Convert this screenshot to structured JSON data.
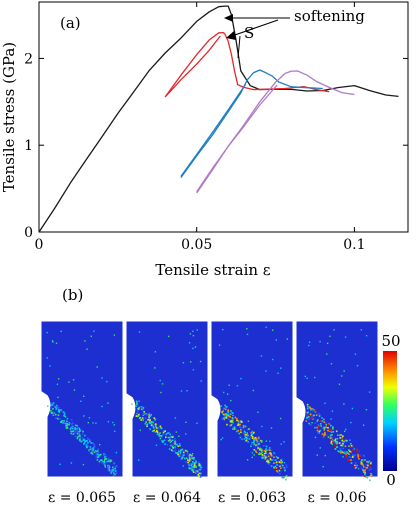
{
  "panel_a_label": "(a)",
  "panel_b_label": "(b)",
  "annotation_softening": "softening",
  "annotation_s": "S",
  "colorbar": {
    "max_label": "50",
    "min_label": "0"
  },
  "snapshots": [
    {
      "label": "ε = 0.065",
      "shift": 0
    },
    {
      "label": "ε = 0.064",
      "shift": 1
    },
    {
      "label": "ε = 0.063",
      "shift": 2
    },
    {
      "label": "ε = 0.06",
      "shift": 3
    }
  ],
  "colors": {
    "black_curve": "#1a1a1a",
    "red_curve": "#e8262b",
    "blue_curve": "#1f7fc4",
    "violet_curve": "#b07ac8",
    "field_background": "#1d2fd0"
  },
  "chart_data": {
    "type": "line",
    "xlabel": "Tensile strain ε",
    "ylabel": "Tensile stress (GPa)",
    "xlim": [
      0,
      0.117
    ],
    "ylim": [
      0,
      2.65
    ],
    "xticks": [
      0,
      0.05,
      0.1
    ],
    "xtick_labels": [
      "0",
      "0.05",
      "0.1"
    ],
    "yticks": [
      0,
      1,
      2
    ],
    "ytick_labels": [
      "0",
      "1",
      "2"
    ],
    "series": [
      {
        "key": "black",
        "x": [
          0,
          0.005,
          0.01,
          0.015,
          0.02,
          0.025,
          0.03,
          0.035,
          0.04,
          0.045,
          0.05,
          0.054,
          0.057,
          0.059,
          0.06,
          0.061,
          0.0625,
          0.064,
          0.067,
          0.07,
          0.075,
          0.08,
          0.085,
          0.09,
          0.095,
          0.1,
          0.105,
          0.11,
          0.114
        ],
        "y": [
          0,
          0.28,
          0.56,
          0.84,
          1.1,
          1.36,
          1.62,
          1.86,
          2.06,
          2.24,
          2.42,
          2.53,
          2.59,
          2.61,
          2.6,
          2.5,
          2.2,
          1.85,
          1.68,
          1.64,
          1.64,
          1.65,
          1.62,
          1.63,
          1.67,
          1.68,
          1.63,
          1.58,
          1.56
        ]
      },
      {
        "key": "red",
        "x": [
          0.04,
          0.045,
          0.05,
          0.054,
          0.057,
          0.0585,
          0.059,
          0.06,
          0.061,
          0.062,
          0.063,
          0.065,
          0.068,
          0.072,
          0.078,
          0.084,
          0.088,
          0.092
        ],
        "y": [
          1.56,
          1.8,
          2.05,
          2.22,
          2.3,
          2.3,
          2.27,
          2.2,
          2.05,
          1.85,
          1.7,
          1.66,
          1.64,
          1.64,
          1.66,
          1.67,
          1.64,
          1.62
        ]
      },
      {
        "key": "red_return",
        "x": [
          0.0575,
          0.054,
          0.05,
          0.045,
          0.04
        ],
        "y": [
          2.26,
          2.1,
          1.94,
          1.75,
          1.55
        ]
      },
      {
        "key": "blue",
        "x": [
          0.045,
          0.05,
          0.055,
          0.06,
          0.064,
          0.066,
          0.068,
          0.07,
          0.072,
          0.074,
          0.076,
          0.08,
          0.085,
          0.09
        ],
        "y": [
          0.62,
          0.88,
          1.12,
          1.38,
          1.6,
          1.75,
          1.84,
          1.86,
          1.84,
          1.79,
          1.73,
          1.67,
          1.66,
          1.66
        ]
      },
      {
        "key": "blue_return",
        "x": [
          0.0655,
          0.06,
          0.055,
          0.05,
          0.045
        ],
        "y": [
          1.7,
          1.4,
          1.15,
          0.9,
          0.64
        ]
      },
      {
        "key": "violet",
        "x": [
          0.05,
          0.055,
          0.06,
          0.065,
          0.07,
          0.075,
          0.078,
          0.08,
          0.082,
          0.085,
          0.088,
          0.092,
          0.096,
          0.1
        ],
        "y": [
          0.45,
          0.72,
          0.98,
          1.24,
          1.5,
          1.72,
          1.82,
          1.86,
          1.85,
          1.8,
          1.73,
          1.66,
          1.6,
          1.58
        ]
      },
      {
        "key": "violet_return",
        "x": [
          0.0755,
          0.07,
          0.065,
          0.06,
          0.055,
          0.05
        ],
        "y": [
          1.7,
          1.47,
          1.22,
          0.98,
          0.73,
          0.47
        ]
      }
    ]
  }
}
